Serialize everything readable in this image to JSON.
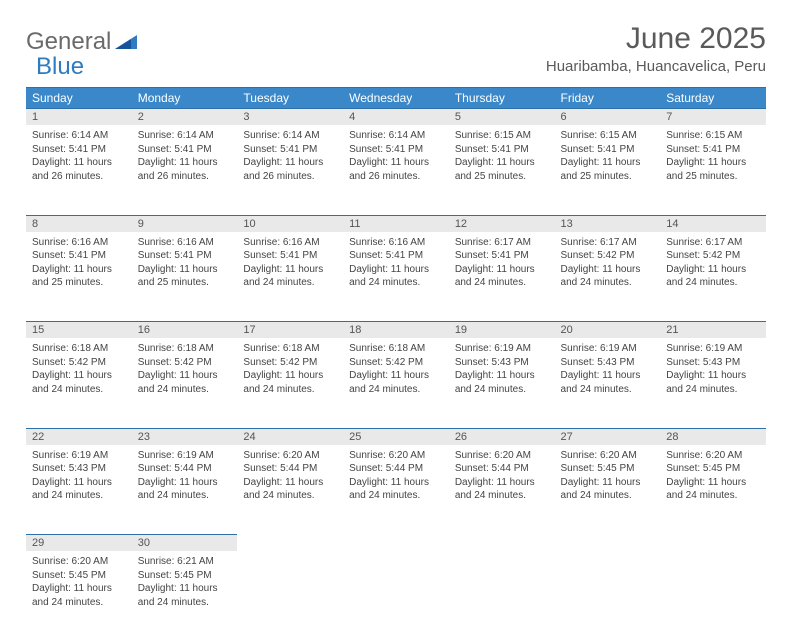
{
  "brand": {
    "part1": "General",
    "part2": "Blue"
  },
  "title": "June 2025",
  "location": "Huaribamba, Huancavelica, Peru",
  "colors": {
    "header_bg": "#3a88c9",
    "header_border": "#2f6fa8",
    "daynum_bg": "#e9e9e9",
    "text": "#444444",
    "title_color": "#5a5a5a"
  },
  "typography": {
    "title_fontsize": 30,
    "location_fontsize": 15,
    "dayheader_fontsize": 12,
    "daynum_fontsize": 11,
    "body_fontsize": 10
  },
  "day_headers": [
    "Sunday",
    "Monday",
    "Tuesday",
    "Wednesday",
    "Thursday",
    "Friday",
    "Saturday"
  ],
  "weeks": [
    [
      {
        "n": "1",
        "sunrise": "6:14 AM",
        "sunset": "5:41 PM",
        "dl": "11 hours and 26 minutes."
      },
      {
        "n": "2",
        "sunrise": "6:14 AM",
        "sunset": "5:41 PM",
        "dl": "11 hours and 26 minutes."
      },
      {
        "n": "3",
        "sunrise": "6:14 AM",
        "sunset": "5:41 PM",
        "dl": "11 hours and 26 minutes."
      },
      {
        "n": "4",
        "sunrise": "6:14 AM",
        "sunset": "5:41 PM",
        "dl": "11 hours and 26 minutes."
      },
      {
        "n": "5",
        "sunrise": "6:15 AM",
        "sunset": "5:41 PM",
        "dl": "11 hours and 25 minutes."
      },
      {
        "n": "6",
        "sunrise": "6:15 AM",
        "sunset": "5:41 PM",
        "dl": "11 hours and 25 minutes."
      },
      {
        "n": "7",
        "sunrise": "6:15 AM",
        "sunset": "5:41 PM",
        "dl": "11 hours and 25 minutes."
      }
    ],
    [
      {
        "n": "8",
        "sunrise": "6:16 AM",
        "sunset": "5:41 PM",
        "dl": "11 hours and 25 minutes."
      },
      {
        "n": "9",
        "sunrise": "6:16 AM",
        "sunset": "5:41 PM",
        "dl": "11 hours and 25 minutes."
      },
      {
        "n": "10",
        "sunrise": "6:16 AM",
        "sunset": "5:41 PM",
        "dl": "11 hours and 24 minutes."
      },
      {
        "n": "11",
        "sunrise": "6:16 AM",
        "sunset": "5:41 PM",
        "dl": "11 hours and 24 minutes."
      },
      {
        "n": "12",
        "sunrise": "6:17 AM",
        "sunset": "5:41 PM",
        "dl": "11 hours and 24 minutes."
      },
      {
        "n": "13",
        "sunrise": "6:17 AM",
        "sunset": "5:42 PM",
        "dl": "11 hours and 24 minutes."
      },
      {
        "n": "14",
        "sunrise": "6:17 AM",
        "sunset": "5:42 PM",
        "dl": "11 hours and 24 minutes."
      }
    ],
    [
      {
        "n": "15",
        "sunrise": "6:18 AM",
        "sunset": "5:42 PM",
        "dl": "11 hours and 24 minutes."
      },
      {
        "n": "16",
        "sunrise": "6:18 AM",
        "sunset": "5:42 PM",
        "dl": "11 hours and 24 minutes."
      },
      {
        "n": "17",
        "sunrise": "6:18 AM",
        "sunset": "5:42 PM",
        "dl": "11 hours and 24 minutes."
      },
      {
        "n": "18",
        "sunrise": "6:18 AM",
        "sunset": "5:42 PM",
        "dl": "11 hours and 24 minutes."
      },
      {
        "n": "19",
        "sunrise": "6:19 AM",
        "sunset": "5:43 PM",
        "dl": "11 hours and 24 minutes."
      },
      {
        "n": "20",
        "sunrise": "6:19 AM",
        "sunset": "5:43 PM",
        "dl": "11 hours and 24 minutes."
      },
      {
        "n": "21",
        "sunrise": "6:19 AM",
        "sunset": "5:43 PM",
        "dl": "11 hours and 24 minutes."
      }
    ],
    [
      {
        "n": "22",
        "sunrise": "6:19 AM",
        "sunset": "5:43 PM",
        "dl": "11 hours and 24 minutes."
      },
      {
        "n": "23",
        "sunrise": "6:19 AM",
        "sunset": "5:44 PM",
        "dl": "11 hours and 24 minutes."
      },
      {
        "n": "24",
        "sunrise": "6:20 AM",
        "sunset": "5:44 PM",
        "dl": "11 hours and 24 minutes."
      },
      {
        "n": "25",
        "sunrise": "6:20 AM",
        "sunset": "5:44 PM",
        "dl": "11 hours and 24 minutes."
      },
      {
        "n": "26",
        "sunrise": "6:20 AM",
        "sunset": "5:44 PM",
        "dl": "11 hours and 24 minutes."
      },
      {
        "n": "27",
        "sunrise": "6:20 AM",
        "sunset": "5:45 PM",
        "dl": "11 hours and 24 minutes."
      },
      {
        "n": "28",
        "sunrise": "6:20 AM",
        "sunset": "5:45 PM",
        "dl": "11 hours and 24 minutes."
      }
    ],
    [
      {
        "n": "29",
        "sunrise": "6:20 AM",
        "sunset": "5:45 PM",
        "dl": "11 hours and 24 minutes."
      },
      {
        "n": "30",
        "sunrise": "6:21 AM",
        "sunset": "5:45 PM",
        "dl": "11 hours and 24 minutes."
      },
      null,
      null,
      null,
      null,
      null
    ]
  ],
  "labels": {
    "sunrise": "Sunrise:",
    "sunset": "Sunset:",
    "daylight": "Daylight:"
  }
}
